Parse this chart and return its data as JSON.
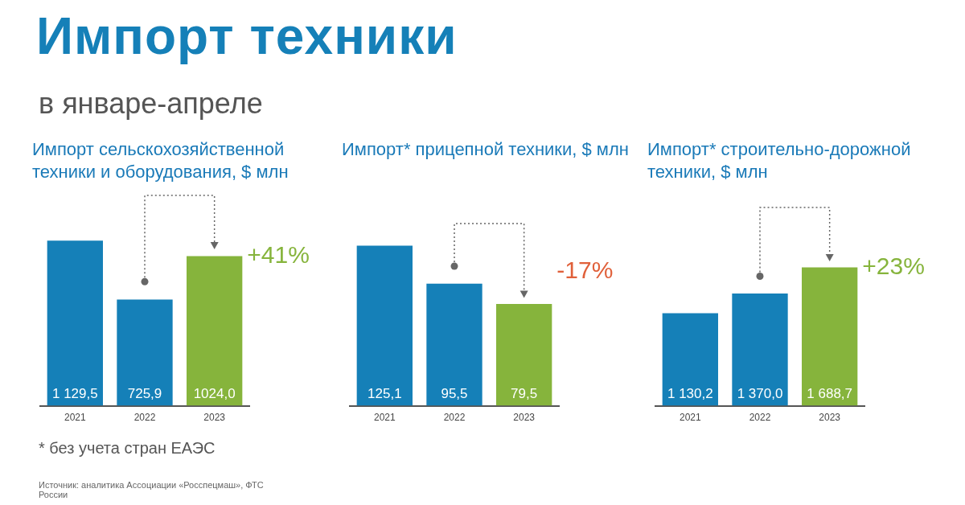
{
  "chart_data": [
    {
      "type": "other",
      "title": "Импорт техники",
      "subtitle": "в январе-апреле",
      "annotations": [
        "* без учета стран ЕАЭС",
        "Источник: аналитика Ассоциации «Росспецмаш», ФТС России"
      ]
    },
    {
      "type": "bar",
      "title": "Импорт сельскохозяйственной техники и оборудования, $ млн",
      "categories": [
        "2021",
        "2022",
        "2023"
      ],
      "values": [
        1129.5,
        725.9,
        1024.0
      ],
      "colors": [
        "#1580b8",
        "#1580b8",
        "#86b43c"
      ],
      "value_labels": [
        "1 129,5",
        "725,9",
        "1024,0"
      ],
      "tick_labels": "x",
      "annotations": [
        {
          "text": "+41%",
          "x": "2023",
          "y": 1024.0
        }
      ]
    },
    {
      "type": "bar",
      "title": "Импорт* прицепной техники, $ млн",
      "categories": [
        "2021",
        "2022",
        "2023"
      ],
      "values": [
        125.1,
        95.5,
        79.5
      ],
      "colors": [
        "#1580b8",
        "#1580b8",
        "#86b43c"
      ],
      "value_labels": [
        "125,1",
        "95,5",
        "79,5"
      ],
      "tick_labels": "x",
      "annotations": [
        {
          "text": "-17%",
          "x": "2023",
          "y": 79.5
        }
      ]
    },
    {
      "type": "bar",
      "title": "Импорт* строительно-дорожной техники, $ млн",
      "categories": [
        "2021",
        "2022",
        "2023"
      ],
      "values": [
        1130.2,
        1370.0,
        1688.7
      ],
      "colors": [
        "#1580b8",
        "#1580b8",
        "#86b43c"
      ],
      "value_labels": [
        "1 130,2",
        "1 370,0",
        "1 688,7"
      ],
      "tick_labels": "x",
      "annotations": [
        {
          "text": "+23%",
          "x": "2023",
          "y": 1688.7
        }
      ]
    }
  ]
}
